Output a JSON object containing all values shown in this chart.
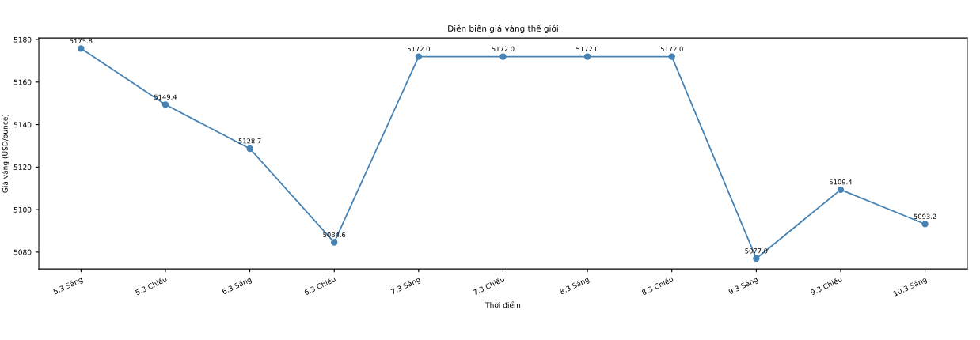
{
  "chart_data": {
    "type": "line",
    "title": "Diễn biến giá vàng thế giới",
    "xlabel": "Thời điểm",
    "ylabel": "Giá vàng (USD/ounce)",
    "categories": [
      "5.3 Sáng",
      "5.3 Chiều",
      "6.3 Sáng",
      "6.3 Chiều",
      "7.3 Sáng",
      "7.3 Chiều",
      "8.3 Sáng",
      "8.3 Chiều",
      "9.3 Sáng",
      "9.3 Chiều",
      "10.3 Sáng"
    ],
    "series": [
      {
        "color": "#4682b4",
        "values": [
          5175.8,
          5149.4,
          5128.7,
          5084.6,
          5172.0,
          5172.0,
          5172.0,
          5172.0,
          5077.0,
          5109.4,
          5093.2
        ],
        "value_labels": [
          "5175.8",
          "5149.4",
          "5128.7",
          "5084.6",
          "5172.0",
          "5172.0",
          "5172.0",
          "5172.0",
          "5077.0",
          "5109.4",
          "5093.2"
        ]
      }
    ],
    "ylim": [
      5072.1,
      5180.7
    ],
    "yticks": [
      5080,
      5100,
      5120,
      5140,
      5160,
      5180
    ],
    "marker": "circle",
    "line_style": "solid",
    "grid": false
  }
}
